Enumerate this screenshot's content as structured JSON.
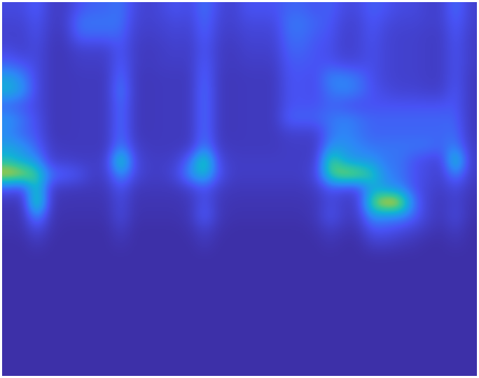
{
  "chart_data": {
    "type": "heatmap",
    "tick_labels": false,
    "zlim": [
      0,
      100
    ],
    "cells": [
      [
        15,
        15,
        25,
        8,
        8,
        20,
        25,
        25,
        30,
        15,
        10,
        15,
        20,
        15,
        30,
        15,
        10,
        20,
        20,
        20,
        25,
        25,
        20,
        25,
        15,
        15,
        25,
        20,
        15,
        15,
        10,
        10,
        30,
        10
      ],
      [
        12,
        12,
        20,
        8,
        8,
        30,
        30,
        30,
        30,
        12,
        10,
        12,
        15,
        12,
        28,
        12,
        10,
        15,
        15,
        15,
        30,
        30,
        25,
        22,
        12,
        12,
        22,
        15,
        12,
        12,
        10,
        10,
        25,
        10
      ],
      [
        10,
        10,
        18,
        6,
        6,
        25,
        25,
        25,
        25,
        10,
        8,
        10,
        12,
        10,
        25,
        10,
        8,
        12,
        12,
        12,
        28,
        28,
        22,
        20,
        10,
        12,
        20,
        12,
        10,
        10,
        8,
        8,
        22,
        8
      ],
      [
        15,
        10,
        15,
        5,
        5,
        10,
        10,
        10,
        22,
        8,
        6,
        8,
        10,
        8,
        22,
        8,
        6,
        10,
        10,
        10,
        25,
        25,
        20,
        18,
        10,
        12,
        18,
        12,
        10,
        10,
        8,
        8,
        20,
        8
      ],
      [
        25,
        20,
        15,
        5,
        5,
        8,
        8,
        8,
        25,
        8,
        6,
        8,
        8,
        8,
        25,
        8,
        6,
        8,
        8,
        8,
        22,
        22,
        20,
        20,
        15,
        15,
        18,
        12,
        10,
        10,
        8,
        8,
        20,
        8
      ],
      [
        45,
        35,
        15,
        5,
        5,
        6,
        6,
        6,
        30,
        6,
        5,
        6,
        6,
        6,
        28,
        6,
        5,
        6,
        6,
        6,
        20,
        20,
        18,
        35,
        35,
        30,
        18,
        12,
        10,
        10,
        8,
        8,
        20,
        6
      ],
      [
        50,
        40,
        15,
        5,
        5,
        6,
        6,
        6,
        35,
        6,
        5,
        6,
        6,
        6,
        30,
        6,
        5,
        6,
        6,
        6,
        20,
        20,
        18,
        30,
        35,
        30,
        20,
        15,
        12,
        12,
        10,
        10,
        22,
        6
      ],
      [
        25,
        20,
        15,
        5,
        5,
        6,
        6,
        6,
        30,
        6,
        5,
        6,
        6,
        6,
        30,
        6,
        5,
        6,
        6,
        6,
        20,
        20,
        20,
        25,
        20,
        18,
        20,
        20,
        20,
        20,
        20,
        20,
        22,
        6
      ],
      [
        40,
        30,
        18,
        5,
        5,
        6,
        6,
        6,
        30,
        6,
        5,
        6,
        6,
        6,
        30,
        6,
        5,
        6,
        6,
        6,
        25,
        25,
        25,
        30,
        35,
        30,
        25,
        25,
        25,
        25,
        25,
        25,
        25,
        6
      ],
      [
        35,
        25,
        20,
        5,
        5,
        6,
        6,
        6,
        30,
        6,
        5,
        6,
        6,
        6,
        30,
        6,
        5,
        6,
        6,
        6,
        10,
        10,
        10,
        30,
        35,
        30,
        25,
        25,
        25,
        25,
        25,
        25,
        28,
        6
      ],
      [
        45,
        40,
        25,
        8,
        6,
        6,
        6,
        6,
        35,
        10,
        6,
        6,
        6,
        8,
        35,
        8,
        6,
        6,
        6,
        6,
        8,
        8,
        8,
        40,
        40,
        35,
        30,
        30,
        30,
        30,
        30,
        25,
        35,
        8
      ],
      [
        55,
        45,
        40,
        10,
        10,
        8,
        8,
        10,
        70,
        15,
        8,
        8,
        10,
        30,
        70,
        15,
        8,
        8,
        8,
        8,
        8,
        8,
        10,
        70,
        45,
        40,
        40,
        30,
        30,
        20,
        15,
        12,
        65,
        8
      ],
      [
        85,
        80,
        65,
        30,
        25,
        20,
        8,
        10,
        40,
        15,
        8,
        8,
        15,
        40,
        55,
        20,
        8,
        8,
        8,
        8,
        8,
        8,
        15,
        65,
        80,
        75,
        60,
        35,
        30,
        20,
        15,
        10,
        35,
        8
      ],
      [
        20,
        15,
        60,
        8,
        6,
        5,
        5,
        5,
        20,
        5,
        5,
        5,
        5,
        10,
        20,
        8,
        5,
        5,
        5,
        5,
        5,
        5,
        8,
        20,
        15,
        15,
        45,
        40,
        35,
        20,
        12,
        8,
        15,
        5
      ],
      [
        5,
        5,
        75,
        5,
        3,
        3,
        3,
        3,
        15,
        3,
        3,
        3,
        3,
        5,
        20,
        5,
        3,
        3,
        3,
        3,
        3,
        3,
        5,
        15,
        8,
        10,
        70,
        90,
        85,
        30,
        10,
        5,
        12,
        3
      ],
      [
        3,
        3,
        40,
        3,
        2,
        2,
        2,
        2,
        15,
        2,
        2,
        2,
        2,
        5,
        25,
        5,
        2,
        2,
        2,
        2,
        2,
        2,
        5,
        20,
        8,
        8,
        40,
        35,
        35,
        25,
        10,
        5,
        15,
        2
      ],
      [
        2,
        2,
        15,
        2,
        0,
        0,
        0,
        0,
        8,
        0,
        0,
        0,
        0,
        2,
        10,
        2,
        0,
        0,
        0,
        0,
        0,
        0,
        2,
        8,
        3,
        3,
        20,
        20,
        15,
        10,
        5,
        2,
        8,
        0
      ],
      [
        0,
        0,
        5,
        0,
        0,
        0,
        0,
        0,
        3,
        0,
        0,
        0,
        0,
        0,
        5,
        0,
        0,
        0,
        0,
        0,
        0,
        0,
        0,
        3,
        0,
        0,
        8,
        8,
        5,
        3,
        0,
        0,
        3,
        0
      ],
      [
        0,
        0,
        0,
        0,
        0,
        0,
        0,
        0,
        0,
        0,
        0,
        0,
        0,
        0,
        0,
        0,
        0,
        0,
        0,
        0,
        0,
        0,
        0,
        0,
        0,
        0,
        0,
        0,
        0,
        0,
        0,
        0,
        0,
        0
      ],
      [
        0,
        0,
        0,
        0,
        0,
        0,
        0,
        0,
        0,
        0,
        0,
        0,
        0,
        0,
        0,
        0,
        0,
        0,
        0,
        0,
        0,
        0,
        0,
        0,
        0,
        0,
        0,
        0,
        0,
        0,
        0,
        0,
        0,
        0
      ],
      [
        0,
        0,
        0,
        0,
        0,
        0,
        0,
        0,
        0,
        0,
        0,
        0,
        0,
        0,
        0,
        0,
        0,
        0,
        0,
        0,
        0,
        0,
        0,
        0,
        0,
        0,
        0,
        0,
        0,
        0,
        0,
        0,
        0,
        0
      ],
      [
        0,
        0,
        0,
        0,
        0,
        0,
        0,
        0,
        0,
        0,
        0,
        0,
        0,
        0,
        0,
        0,
        0,
        0,
        0,
        0,
        0,
        0,
        0,
        0,
        0,
        0,
        0,
        0,
        0,
        0,
        0,
        0,
        0,
        0
      ],
      [
        0,
        0,
        0,
        0,
        0,
        0,
        0,
        0,
        0,
        0,
        0,
        0,
        0,
        0,
        0,
        0,
        0,
        0,
        0,
        0,
        0,
        0,
        0,
        0,
        0,
        0,
        0,
        0,
        0,
        0,
        0,
        0,
        0,
        0
      ],
      [
        0,
        0,
        0,
        0,
        0,
        0,
        0,
        0,
        0,
        0,
        0,
        0,
        0,
        0,
        0,
        0,
        0,
        0,
        0,
        0,
        0,
        0,
        0,
        0,
        0,
        0,
        0,
        0,
        0,
        0,
        0,
        0,
        0,
        0
      ],
      [
        0,
        0,
        0,
        0,
        0,
        0,
        0,
        0,
        0,
        0,
        0,
        0,
        0,
        0,
        0,
        0,
        0,
        0,
        0,
        0,
        0,
        0,
        0,
        0,
        0,
        0,
        0,
        0,
        0,
        0,
        0,
        0,
        0,
        0
      ],
      [
        0,
        0,
        0,
        0,
        0,
        0,
        0,
        0,
        0,
        0,
        0,
        0,
        0,
        0,
        0,
        0,
        0,
        0,
        0,
        0,
        0,
        0,
        0,
        0,
        0,
        0,
        0,
        0,
        0,
        0,
        0,
        0,
        0,
        0
      ],
      [
        0,
        0,
        0,
        0,
        0,
        0,
        0,
        0,
        0,
        0,
        0,
        0,
        0,
        0,
        0,
        0,
        0,
        0,
        0,
        0,
        0,
        0,
        0,
        0,
        0,
        0,
        0,
        0,
        0,
        0,
        0,
        0,
        0,
        0
      ]
    ]
  }
}
